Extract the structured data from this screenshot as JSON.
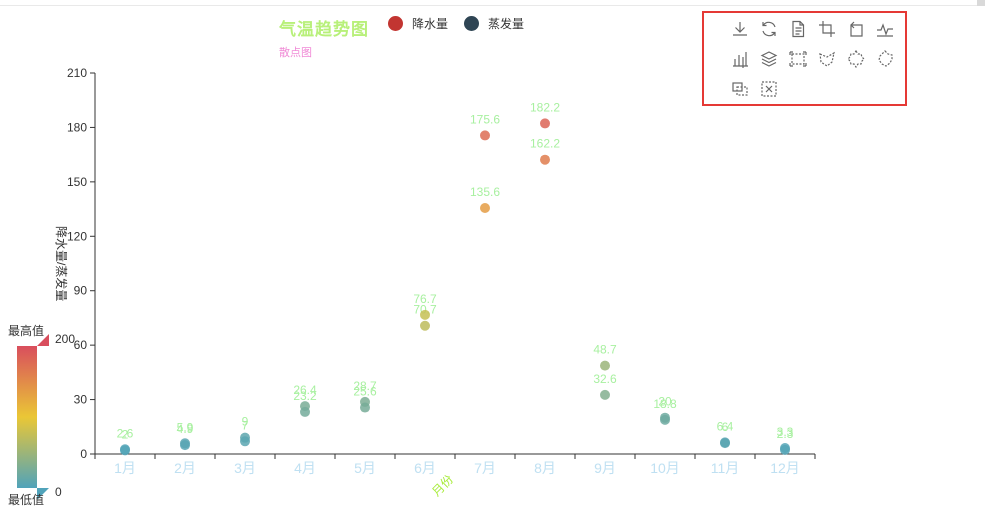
{
  "title": "气温趋势图",
  "subtitle": "散点图",
  "legend": [
    {
      "name": "降水量",
      "color": "#c23531"
    },
    {
      "name": "蒸发量",
      "color": "#2f4554"
    }
  ],
  "visual_map": {
    "max_text": "最高值",
    "min_text": "最低值",
    "max_value": "200",
    "min_value": "0",
    "colors": [
      "#d94e5d",
      "#eac736",
      "#50a3ba"
    ]
  },
  "toolbox": {
    "icons": [
      "download-icon",
      "refresh-icon",
      "data-view-icon",
      "crop-icon",
      "restore-icon",
      "line-chart-icon",
      "bar-chart-icon",
      "stack-icon",
      "rect-select-icon",
      "polygon-select-icon",
      "keep-select-icon",
      "clear-select-icon",
      "zoom-icon",
      "zoom-reset-icon"
    ]
  },
  "chart_data": {
    "type": "scatter",
    "categories": [
      "1月",
      "2月",
      "3月",
      "4月",
      "5月",
      "6月",
      "7月",
      "8月",
      "9月",
      "10月",
      "11月",
      "12月"
    ],
    "series": [
      {
        "name": "降水量",
        "values": [
          2.6,
          5.9,
          9.0,
          26.4,
          28.7,
          70.7,
          175.6,
          182.2,
          48.7,
          18.8,
          6.0,
          2.3
        ]
      },
      {
        "name": "蒸发量",
        "values": [
          2.0,
          4.9,
          7.0,
          23.2,
          25.6,
          76.7,
          135.6,
          162.2,
          32.6,
          20.0,
          6.4,
          3.3
        ]
      }
    ],
    "data_labels": {
      "降水量": [
        "2.6",
        "5.9",
        "9",
        "26.4",
        "28.7",
        "70.7",
        "175.6",
        "182.2",
        "48.7",
        "18.8",
        "6",
        "2.3"
      ],
      "蒸发量": [
        "2",
        "4.9",
        "7",
        "23.2",
        "25.6",
        "76.7",
        "135.6",
        "162.2",
        "32.6",
        "20",
        "6.4",
        "3.3"
      ]
    },
    "xlabel": "月份",
    "ylabel": "降水量/蒸发量",
    "y_ticks": [
      "0",
      "30",
      "60",
      "90",
      "120",
      "150",
      "180",
      "210"
    ],
    "ylim": [
      0,
      210
    ],
    "grid": false,
    "legend_position": "top"
  }
}
